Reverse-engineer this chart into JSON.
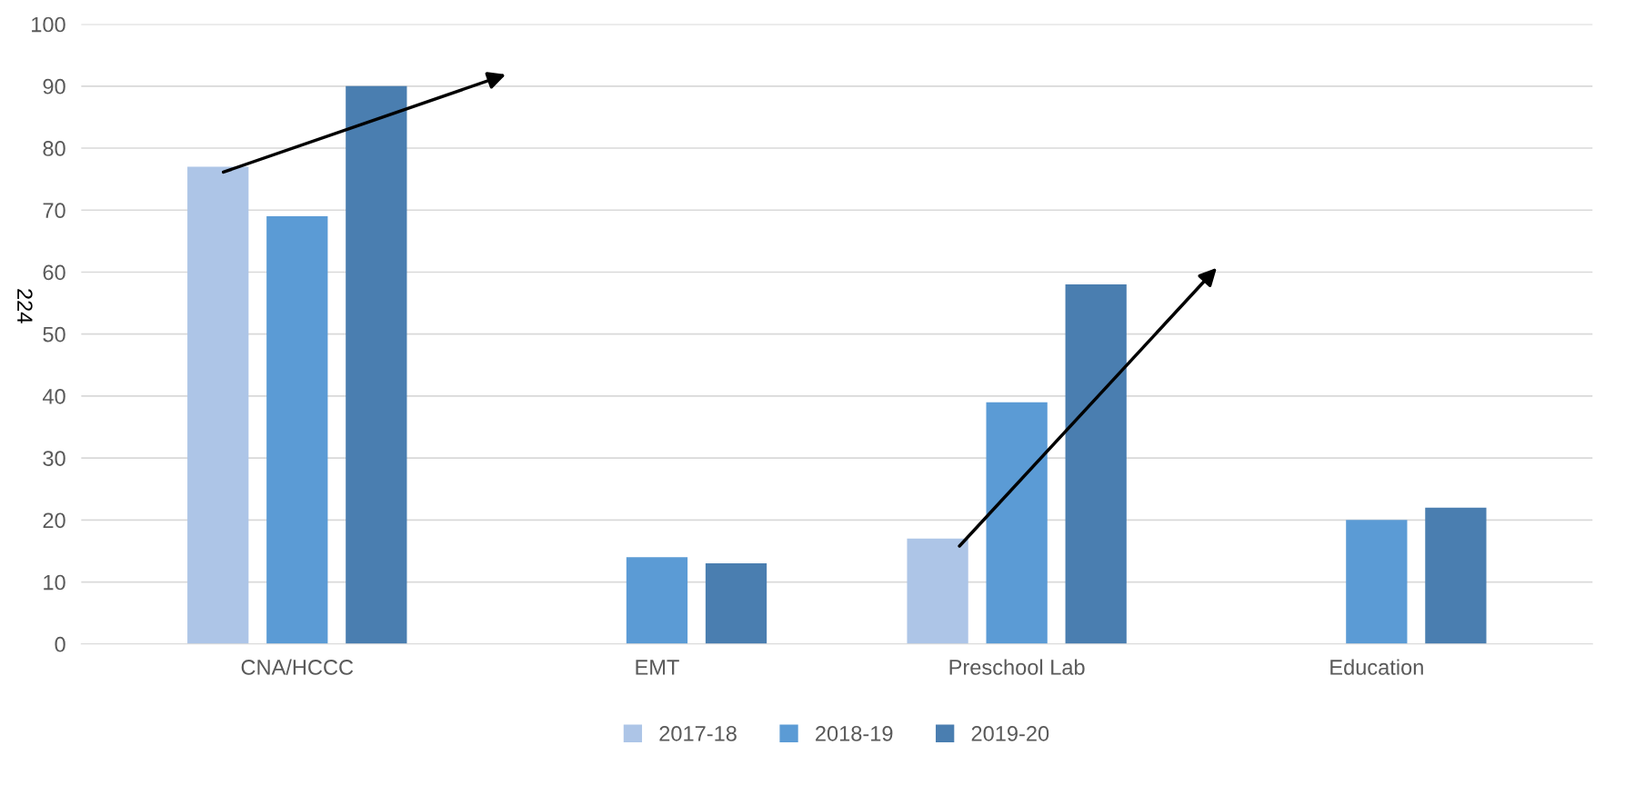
{
  "chart_data": {
    "type": "bar",
    "categories": [
      "CNA/HCCC",
      "EMT",
      "Preschool Lab",
      "Education"
    ],
    "series": [
      {
        "name": "2017-18",
        "color": "#adc5e7",
        "values": [
          77,
          null,
          17,
          null
        ]
      },
      {
        "name": "2018-19",
        "color": "#5b9bd5",
        "values": [
          69,
          14,
          39,
          20
        ]
      },
      {
        "name": "2019-20",
        "color": "#4a7eb0",
        "values": [
          90,
          13,
          58,
          22
        ]
      }
    ],
    "ylim": [
      0,
      100
    ],
    "yticks": [
      0,
      10,
      20,
      30,
      40,
      50,
      60,
      70,
      80,
      90,
      100
    ],
    "grid": "y",
    "legend": "bottom",
    "annotations": [
      "224"
    ]
  }
}
